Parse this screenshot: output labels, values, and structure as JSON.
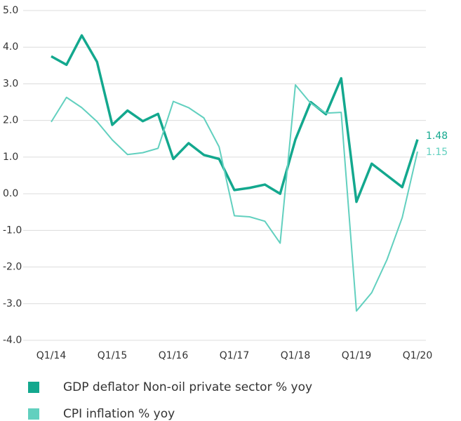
{
  "chart_data": {
    "type": "line",
    "categories": [
      "Q1/14",
      null,
      null,
      null,
      "Q1/15",
      null,
      null,
      null,
      "Q1/16",
      null,
      null,
      null,
      "Q1/17",
      null,
      null,
      null,
      "Q1/18",
      null,
      null,
      null,
      "Q1/19",
      null,
      null,
      null,
      "Q1/20"
    ],
    "series": [
      {
        "name": "GDP deflator Non-oil private sector % yoy",
        "color": "#13a88e",
        "values": [
          3.75,
          3.52,
          4.32,
          3.6,
          1.88,
          2.27,
          1.98,
          2.18,
          0.95,
          1.38,
          1.06,
          0.95,
          0.1,
          0.16,
          0.25,
          0.0,
          1.48,
          2.5,
          2.17,
          3.15,
          -0.22,
          0.82,
          0.5,
          0.18,
          1.48
        ]
      },
      {
        "name": "CPI inflation % yoy",
        "color": "#62d0bf",
        "values": [
          1.96,
          2.63,
          2.35,
          1.97,
          1.47,
          1.07,
          1.12,
          1.24,
          2.52,
          2.35,
          2.07,
          1.28,
          -0.6,
          -0.63,
          -0.75,
          -1.35,
          2.97,
          2.47,
          2.2,
          2.22,
          -3.2,
          -2.7,
          -1.8,
          -0.65,
          1.15
        ]
      }
    ],
    "ylim": [
      -4,
      5
    ],
    "yticks": [
      {
        "value": 5,
        "label": "5.0"
      },
      {
        "value": 4,
        "label": "4.0"
      },
      {
        "value": 3,
        "label": "3.0"
      },
      {
        "value": 2,
        "label": "2.0"
      },
      {
        "value": 1,
        "label": "1.0"
      },
      {
        "value": 0,
        "label": "0.0"
      },
      {
        "value": -1,
        "label": "-1.0"
      },
      {
        "value": -2,
        "label": "-2.0"
      },
      {
        "value": -3,
        "label": "-3.0"
      },
      {
        "value": -4,
        "label": "-4.0"
      }
    ],
    "grid": true
  }
}
